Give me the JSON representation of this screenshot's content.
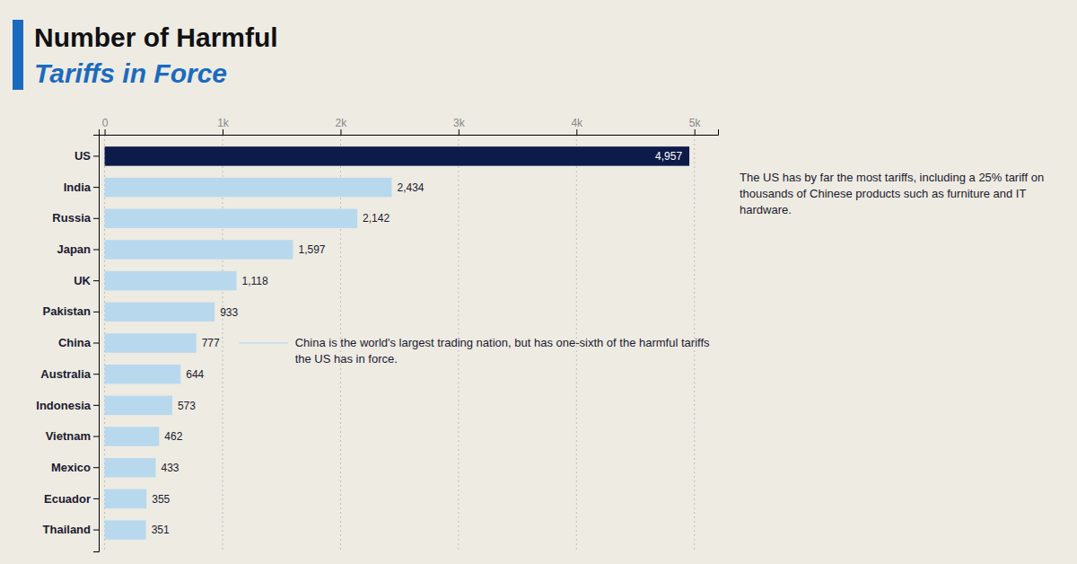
{
  "chart_data": {
    "type": "bar",
    "orientation": "horizontal",
    "title": "Number of Harmful",
    "subtitle": "Tariffs in Force",
    "categories": [
      "US",
      "India",
      "Russia",
      "Japan",
      "UK",
      "Pakistan",
      "China",
      "Australia",
      "Indonesia",
      "Vietnam",
      "Mexico",
      "Ecuador",
      "Thailand"
    ],
    "values": [
      4957,
      2434,
      2142,
      1597,
      1118,
      933,
      777,
      644,
      573,
      462,
      433,
      355,
      351
    ],
    "value_labels": [
      "4,957",
      "2,434",
      "2,142",
      "1,597",
      "1,118",
      "933",
      "777",
      "644",
      "573",
      "462",
      "433",
      "355",
      "351"
    ],
    "colors": [
      "#0d1b4b",
      "#b8d9ed",
      "#b8d9ed",
      "#b8d9ed",
      "#b8d9ed",
      "#b8d9ed",
      "#b8d9ed",
      "#b8d9ed",
      "#b8d9ed",
      "#b8d9ed",
      "#b8d9ed",
      "#b8d9ed",
      "#b8d9ed"
    ],
    "data_labels": true,
    "xlim": [
      -50,
      5200
    ],
    "xticks": [
      0,
      {
        "value": 1000,
        "label": "1k"
      },
      {
        "value": 2000,
        "label": "2k"
      },
      {
        "value": 3000,
        "label": "3k"
      },
      {
        "value": 4000,
        "label": "4k"
      },
      {
        "value": 5000,
        "label": "5k"
      }
    ],
    "grid": true,
    "annotations": [
      "The US has by far the most tariffs, including a 25% tariff on thousands of Chinese products such as furniture and IT hardware.",
      "China is the world's largest trading nation, but has one-sixth of the harmful tariffs the US has in force."
    ]
  }
}
